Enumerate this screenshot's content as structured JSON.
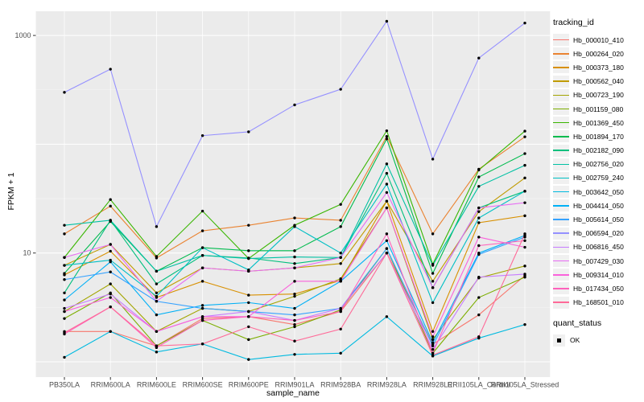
{
  "colors": {
    "panel_bg": "#EBEBEB",
    "grid": "#FFFFFF",
    "point": "#000000",
    "axis_text": "#4D4D4D",
    "tick_mark": "#333333",
    "legend_key_bg": "#F0F0F0"
  },
  "chart_data": {
    "type": "line",
    "title": "",
    "xlabel": "sample_name",
    "ylabel": "FPKM + 1",
    "y_scale": "log10",
    "ylim": [
      0.72,
      1700
    ],
    "grid": "on",
    "point_color": "#000000",
    "y_ticks": [
      {
        "label": "1000",
        "value": 1000
      },
      {
        "label": "10",
        "value": 10
      }
    ],
    "y_major_gridlines": [
      1,
      10,
      100,
      1000
    ],
    "y_minor_gridlines": [
      3.1623,
      31.623,
      316.23
    ],
    "x_categories": [
      "PB350LA",
      "RRIM600LA",
      "RRIM600LE",
      "RRIM600SE",
      "RRIM600PE",
      "RRIM901LA",
      "RRIM928BA",
      "RRIM928LA",
      "RRIM928LE",
      "RRII105LA_Control",
      "RRII105LA_Stressed"
    ],
    "legend": {
      "title": "tracking_id",
      "position": "right"
    },
    "quant_legend": {
      "title": "quant_status",
      "items": [
        {
          "label": "OK",
          "marker": "black-square"
        }
      ]
    },
    "series": [
      {
        "name": "Hb_000010_410",
        "color": "#F8766D",
        "values": [
          1.9,
          1.9,
          1.4,
          2.5,
          2.6,
          2.2,
          2.9,
          10,
          1.45,
          2.7,
          6.2
        ]
      },
      {
        "name": "Hb_000264_020",
        "color": "#EA8331",
        "values": [
          15,
          27,
          9.0,
          16,
          18,
          21,
          20,
          118,
          15,
          59,
          117
        ]
      },
      {
        "name": "Hb_000373_180",
        "color": "#D89000",
        "values": [
          6.3,
          10.4,
          3.9,
          5.5,
          4.1,
          4.2,
          5.6,
          30,
          1.9,
          19,
          22
        ]
      },
      {
        "name": "Hb_000562_040",
        "color": "#C09B00",
        "values": [
          7.7,
          12,
          4.3,
          7.3,
          6.8,
          7.3,
          8.0,
          30,
          5.5,
          24,
          49
        ]
      },
      {
        "name": "Hb_000723_190",
        "color": "#A3A500",
        "values": [
          2.9,
          5.2,
          1.9,
          3.1,
          2.9,
          4.0,
          5.8,
          26,
          1.6,
          5.9,
          7.6
        ]
      },
      {
        "name": "Hb_001159_080",
        "color": "#7CAE00",
        "values": [
          2.5,
          4.3,
          1.4,
          2.4,
          1.6,
          2.1,
          3.0,
          11,
          1.2,
          3.9,
          6.0
        ]
      },
      {
        "name": "Hb_001369_450",
        "color": "#39B600",
        "values": [
          9.1,
          31,
          9.3,
          24.3,
          8.9,
          18,
          28,
          133,
          7.9,
          58,
          132
        ]
      },
      {
        "name": "Hb_001894_170",
        "color": "#00BB4E",
        "values": [
          6.5,
          19.5,
          6.8,
          11.2,
          10.5,
          10.5,
          17.5,
          112,
          6.5,
          50,
          82
        ]
      },
      {
        "name": "Hb_002182_090",
        "color": "#00BF7D",
        "values": [
          4.3,
          20,
          5.2,
          9.5,
          9.0,
          8.0,
          9.1,
          54,
          4.8,
          26,
          37
        ]
      },
      {
        "name": "Hb_002756_020",
        "color": "#00C1A3",
        "values": [
          18,
          20,
          6.8,
          9.5,
          8.9,
          9.2,
          9.1,
          66,
          7.7,
          41,
          64
        ]
      },
      {
        "name": "Hb_002759_240",
        "color": "#00BFC4",
        "values": [
          7.7,
          8.6,
          4.0,
          11.2,
          7.0,
          17.5,
          10.0,
          43,
          3.5,
          21,
          37
        ]
      },
      {
        "name": "Hb_003642_050",
        "color": "#00BAE0",
        "values": [
          1.1,
          1.9,
          1.23,
          1.46,
          1.05,
          1.17,
          1.2,
          2.6,
          1.13,
          1.65,
          2.2
        ]
      },
      {
        "name": "Hb_004414_050",
        "color": "#00B0F6",
        "values": [
          3.7,
          8.3,
          2.7,
          3.3,
          3.5,
          3.1,
          5.5,
          13,
          1.5,
          10,
          14.5
        ]
      },
      {
        "name": "Hb_005614_050",
        "color": "#35A2FF",
        "values": [
          5.7,
          6.7,
          3.6,
          3.1,
          2.9,
          2.7,
          3.1,
          11,
          1.4,
          9.7,
          14
        ]
      },
      {
        "name": "Hb_006594_020",
        "color": "#9590FF",
        "values": [
          300,
          490,
          17.5,
          120,
          130,
          230,
          320,
          1350,
          73,
          620,
          1300
        ]
      },
      {
        "name": "Hb_006816_450",
        "color": "#C77CFF",
        "values": [
          3.1,
          4.2,
          1.9,
          2.6,
          2.9,
          2.4,
          3.1,
          10,
          1.3,
          6.0,
          6.4
        ]
      },
      {
        "name": "Hb_007429_030",
        "color": "#E76BF3",
        "values": [
          9.1,
          12,
          3.6,
          7.3,
          6.8,
          7.3,
          9.1,
          36,
          4.8,
          26,
          29
        ]
      },
      {
        "name": "Hb_009314_010",
        "color": "#FA62DB",
        "values": [
          2.9,
          3.9,
          1.9,
          2.6,
          2.6,
          5.5,
          5.5,
          26,
          1.7,
          14,
          11.3
        ]
      },
      {
        "name": "Hb_017434_050",
        "color": "#FF62BC",
        "values": [
          1.8,
          3.2,
          1.35,
          2.4,
          2.6,
          2.4,
          2.9,
          15,
          1.2,
          11.7,
          13
        ]
      },
      {
        "name": "Hb_168501_010",
        "color": "#FF6A98",
        "values": [
          1.85,
          3.2,
          1.4,
          1.46,
          2.1,
          1.55,
          2.0,
          10,
          1.15,
          1.7,
          15
        ]
      }
    ]
  }
}
